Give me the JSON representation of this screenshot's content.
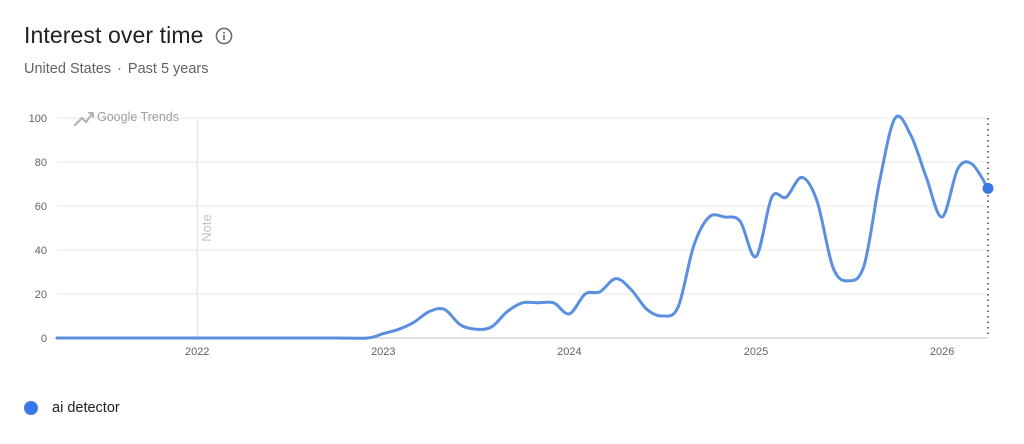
{
  "header": {
    "title": "Interest over time",
    "region": "United States",
    "separator": "·",
    "period": "Past 5 years"
  },
  "watermark": {
    "text": "Google Trends",
    "icon": "trending-up-icon"
  },
  "note_label": "Note",
  "colors": {
    "series": "#5b8fe0",
    "marker": "#3b78e7",
    "grid": "#e8eaed",
    "axis_text": "#5f6368"
  },
  "chart_data": {
    "type": "line",
    "title": "Interest over time",
    "xlabel": "",
    "ylabel": "",
    "ylim": [
      0,
      100
    ],
    "xlim": [
      "2021-04-01",
      "2026-04-01"
    ],
    "yticks": [
      0,
      20,
      40,
      60,
      80,
      100
    ],
    "xticks": [
      "2022",
      "2023",
      "2024",
      "2025",
      "2026"
    ],
    "grid": true,
    "note_date": "2022-01-01",
    "series": [
      {
        "name": "ai detector",
        "x": [
          "2021-04-01",
          "2021-07-01",
          "2021-10-01",
          "2022-01-01",
          "2022-04-01",
          "2022-07-01",
          "2022-10-01",
          "2022-12-01",
          "2023-01-01",
          "2023-02-01",
          "2023-03-01",
          "2023-04-01",
          "2023-05-01",
          "2023-06-01",
          "2023-07-01",
          "2023-08-01",
          "2023-09-01",
          "2023-10-01",
          "2023-11-01",
          "2023-12-01",
          "2024-01-01",
          "2024-02-01",
          "2024-03-01",
          "2024-04-01",
          "2024-05-01",
          "2024-06-01",
          "2024-07-01",
          "2024-08-01",
          "2024-09-01",
          "2024-10-01",
          "2024-11-01",
          "2024-12-01",
          "2025-01-01",
          "2025-02-01",
          "2025-03-01",
          "2025-04-01",
          "2025-05-01",
          "2025-06-01",
          "2025-07-01",
          "2025-08-01",
          "2025-09-01",
          "2025-10-01",
          "2025-11-01",
          "2025-12-01",
          "2026-01-01",
          "2026-02-01",
          "2026-03-01",
          "2026-04-01"
        ],
        "values": [
          0,
          0,
          0,
          0,
          0,
          0,
          0,
          0,
          2,
          4,
          7,
          12,
          13,
          6,
          4,
          5,
          12,
          16,
          16,
          16,
          11,
          20,
          21,
          27,
          22,
          13,
          10,
          14,
          42,
          55,
          55,
          53,
          37,
          64,
          64,
          73,
          62,
          32,
          26,
          33,
          72,
          100,
          92,
          73,
          55,
          77,
          79,
          68
        ]
      }
    ]
  },
  "legend": [
    {
      "label": "ai detector"
    }
  ]
}
